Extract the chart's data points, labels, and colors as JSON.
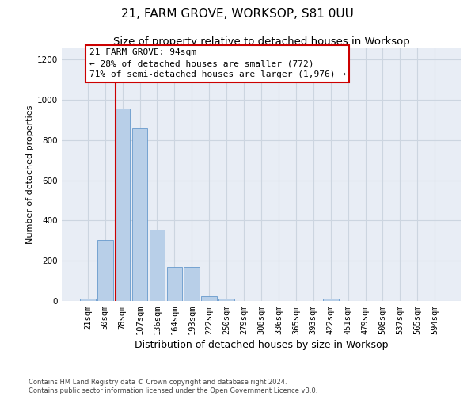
{
  "title": "21, FARM GROVE, WORKSOP, S81 0UU",
  "subtitle": "Size of property relative to detached houses in Worksop",
  "xlabel": "Distribution of detached houses by size in Worksop",
  "ylabel": "Number of detached properties",
  "bar_labels": [
    "21sqm",
    "50sqm",
    "78sqm",
    "107sqm",
    "136sqm",
    "164sqm",
    "193sqm",
    "222sqm",
    "250sqm",
    "279sqm",
    "308sqm",
    "336sqm",
    "365sqm",
    "393sqm",
    "422sqm",
    "451sqm",
    "479sqm",
    "508sqm",
    "537sqm",
    "565sqm",
    "594sqm"
  ],
  "bar_values": [
    10,
    305,
    955,
    860,
    355,
    170,
    170,
    25,
    10,
    0,
    0,
    0,
    0,
    0,
    10,
    0,
    0,
    0,
    0,
    0,
    0
  ],
  "bar_color": "#b8cfe8",
  "bar_edge_color": "#6699cc",
  "vline_color": "#cc0000",
  "vline_x": 1.62,
  "annotation_text": "21 FARM GROVE: 94sqm\n← 28% of detached houses are smaller (772)\n71% of semi-detached houses are larger (1,976) →",
  "ann_box_fc": "#ffffff",
  "ann_box_ec": "#cc0000",
  "ylim": [
    0,
    1260
  ],
  "yticks": [
    0,
    200,
    400,
    600,
    800,
    1000,
    1200
  ],
  "grid_color": "#ccd5e0",
  "bg_color": "#e8edf5",
  "footnote": "Contains HM Land Registry data © Crown copyright and database right 2024.\nContains public sector information licensed under the Open Government Licence v3.0.",
  "title_fontsize": 11,
  "subtitle_fontsize": 9.5,
  "xlabel_fontsize": 9,
  "ylabel_fontsize": 8,
  "tick_fontsize": 7.5,
  "ann_fontsize": 8
}
